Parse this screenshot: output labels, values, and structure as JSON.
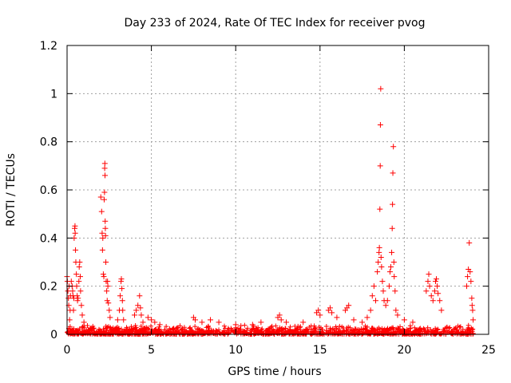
{
  "chart_data": {
    "type": "scatter",
    "title": "Day 233 of 2024, Rate Of TEC Index for receiver pvog",
    "xlabel": "GPS time / hours",
    "ylabel": "ROTI / TECUs",
    "xlim": [
      0,
      25
    ],
    "ylim": [
      0,
      1.2
    ],
    "x_ticks": [
      0,
      5,
      10,
      15,
      20,
      25
    ],
    "x_tick_labels": [
      "0",
      "5",
      "10",
      "15",
      "20",
      "25"
    ],
    "y_ticks": [
      0,
      0.2,
      0.4,
      0.6,
      0.8,
      1.0,
      1.2
    ],
    "y_tick_labels": [
      "0",
      "0.2",
      "0.4",
      "0.6",
      "0.8",
      "1",
      "1.2"
    ],
    "grid": true,
    "marker": "plus",
    "color": "#ff0000",
    "series": [
      {
        "points": [
          [
            0.0,
            0.24
          ],
          [
            0.02,
            0.22
          ],
          [
            0.05,
            0.18
          ],
          [
            0.08,
            0.15
          ],
          [
            0.1,
            0.12
          ],
          [
            0.12,
            0.2
          ],
          [
            0.15,
            0.06
          ],
          [
            0.18,
            0.1
          ],
          [
            0.2,
            0.16
          ],
          [
            0.25,
            0.22
          ],
          [
            0.3,
            0.2
          ],
          [
            0.33,
            0.18
          ],
          [
            0.35,
            0.16
          ],
          [
            0.38,
            0.1
          ],
          [
            0.4,
            0.15
          ],
          [
            0.42,
            0.4
          ],
          [
            0.45,
            0.44
          ],
          [
            0.47,
            0.45
          ],
          [
            0.48,
            0.42
          ],
          [
            0.5,
            0.35
          ],
          [
            0.52,
            0.3
          ],
          [
            0.55,
            0.25
          ],
          [
            0.57,
            0.2
          ],
          [
            0.6,
            0.16
          ],
          [
            0.62,
            0.14
          ],
          [
            0.65,
            0.15
          ],
          [
            0.7,
            0.22
          ],
          [
            0.72,
            0.28
          ],
          [
            0.75,
            0.3
          ],
          [
            0.78,
            0.24
          ],
          [
            0.8,
            0.18
          ],
          [
            0.85,
            0.12
          ],
          [
            0.9,
            0.08
          ],
          [
            1.0,
            0.05
          ],
          [
            2.0,
            0.57
          ],
          [
            2.05,
            0.51
          ],
          [
            2.08,
            0.42
          ],
          [
            2.1,
            0.35
          ],
          [
            2.12,
            0.4
          ],
          [
            2.15,
            0.25
          ],
          [
            2.18,
            0.24
          ],
          [
            2.2,
            0.56
          ],
          [
            2.22,
            0.59
          ],
          [
            2.23,
            0.69
          ],
          [
            2.24,
            0.71
          ],
          [
            2.25,
            0.66
          ],
          [
            2.26,
            0.47
          ],
          [
            2.27,
            0.44
          ],
          [
            2.28,
            0.41
          ],
          [
            2.3,
            0.3
          ],
          [
            2.32,
            0.22
          ],
          [
            2.35,
            0.18
          ],
          [
            2.38,
            0.14
          ],
          [
            2.4,
            0.22
          ],
          [
            2.42,
            0.2
          ],
          [
            2.45,
            0.13
          ],
          [
            2.5,
            0.1
          ],
          [
            2.55,
            0.07
          ],
          [
            3.0,
            0.06
          ],
          [
            3.1,
            0.1
          ],
          [
            3.15,
            0.16
          ],
          [
            3.2,
            0.22
          ],
          [
            3.22,
            0.23
          ],
          [
            3.25,
            0.19
          ],
          [
            3.28,
            0.14
          ],
          [
            3.3,
            0.1
          ],
          [
            3.35,
            0.06
          ],
          [
            4.0,
            0.08
          ],
          [
            4.1,
            0.1
          ],
          [
            4.2,
            0.12
          ],
          [
            4.3,
            0.16
          ],
          [
            4.35,
            0.11
          ],
          [
            4.4,
            0.08
          ],
          [
            4.5,
            0.05
          ],
          [
            4.8,
            0.07
          ],
          [
            5.0,
            0.06
          ],
          [
            5.2,
            0.05
          ],
          [
            5.5,
            0.04
          ],
          [
            7.5,
            0.07
          ],
          [
            7.6,
            0.06
          ],
          [
            8.0,
            0.05
          ],
          [
            8.5,
            0.06
          ],
          [
            9.0,
            0.05
          ],
          [
            10.0,
            0.04
          ],
          [
            11.0,
            0.04
          ],
          [
            11.5,
            0.05
          ],
          [
            12.5,
            0.07
          ],
          [
            12.6,
            0.08
          ],
          [
            12.7,
            0.06
          ],
          [
            13.0,
            0.05
          ],
          [
            14.0,
            0.05
          ],
          [
            14.8,
            0.09
          ],
          [
            14.9,
            0.1
          ],
          [
            15.0,
            0.08
          ],
          [
            15.5,
            0.1
          ],
          [
            15.6,
            0.11
          ],
          [
            15.7,
            0.09
          ],
          [
            16.0,
            0.07
          ],
          [
            16.5,
            0.1
          ],
          [
            16.6,
            0.11
          ],
          [
            16.7,
            0.12
          ],
          [
            17.0,
            0.06
          ],
          [
            17.5,
            0.05
          ],
          [
            17.8,
            0.07
          ],
          [
            18.0,
            0.1
          ],
          [
            18.1,
            0.16
          ],
          [
            18.2,
            0.2
          ],
          [
            18.3,
            0.14
          ],
          [
            18.4,
            0.26
          ],
          [
            18.45,
            0.3
          ],
          [
            18.5,
            0.34
          ],
          [
            18.52,
            0.36
          ],
          [
            18.55,
            0.52
          ],
          [
            18.57,
            0.7
          ],
          [
            18.58,
            0.87
          ],
          [
            18.6,
            1.02
          ],
          [
            18.62,
            0.32
          ],
          [
            18.65,
            0.28
          ],
          [
            18.7,
            0.22
          ],
          [
            18.75,
            0.18
          ],
          [
            18.8,
            0.14
          ],
          [
            18.9,
            0.12
          ],
          [
            19.0,
            0.14
          ],
          [
            19.1,
            0.2
          ],
          [
            19.15,
            0.26
          ],
          [
            19.2,
            0.28
          ],
          [
            19.25,
            0.34
          ],
          [
            19.28,
            0.44
          ],
          [
            19.3,
            0.54
          ],
          [
            19.32,
            0.67
          ],
          [
            19.35,
            0.78
          ],
          [
            19.38,
            0.3
          ],
          [
            19.4,
            0.24
          ],
          [
            19.45,
            0.18
          ],
          [
            19.5,
            0.1
          ],
          [
            19.6,
            0.08
          ],
          [
            20.0,
            0.06
          ],
          [
            20.5,
            0.05
          ],
          [
            21.3,
            0.18
          ],
          [
            21.4,
            0.22
          ],
          [
            21.45,
            0.25
          ],
          [
            21.5,
            0.2
          ],
          [
            21.6,
            0.16
          ],
          [
            21.7,
            0.14
          ],
          [
            21.8,
            0.18
          ],
          [
            21.85,
            0.22
          ],
          [
            21.9,
            0.23
          ],
          [
            21.95,
            0.2
          ],
          [
            22.0,
            0.17
          ],
          [
            22.1,
            0.14
          ],
          [
            22.2,
            0.1
          ],
          [
            23.7,
            0.2
          ],
          [
            23.75,
            0.24
          ],
          [
            23.8,
            0.27
          ],
          [
            23.85,
            0.38
          ],
          [
            23.9,
            0.26
          ],
          [
            23.95,
            0.22
          ],
          [
            24.0,
            0.15
          ],
          [
            24.02,
            0.12
          ],
          [
            24.05,
            0.1
          ],
          [
            24.08,
            0.06
          ]
        ]
      }
    ]
  }
}
